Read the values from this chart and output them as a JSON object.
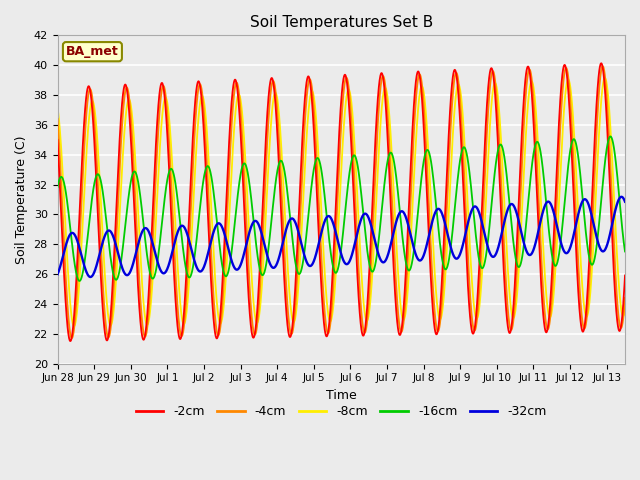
{
  "title": "Soil Temperatures Set B",
  "xlabel": "Time",
  "ylabel": "Soil Temperature (C)",
  "annotation": "BA_met",
  "ylim": [
    20,
    42
  ],
  "yticks": [
    20,
    22,
    24,
    26,
    28,
    30,
    32,
    34,
    36,
    38,
    40,
    42
  ],
  "colors": {
    "-2cm": "#ff0000",
    "-4cm": "#ff8800",
    "-8cm": "#ffee00",
    "-16cm": "#00cc00",
    "-32cm": "#0000dd"
  },
  "background_color": "#ebebeb",
  "grid_color": "#ffffff",
  "xtick_labels": [
    "Jun 28",
    "Jun 29",
    "Jun 30",
    "Jul 1",
    "Jul 2",
    "Jul 3",
    "Jul 4",
    "Jul 5",
    "Jul 6",
    "Jul 7",
    "Jul 8",
    "Jul 9",
    "Jul 10",
    "Jul 11",
    "Jul 12",
    "Jul 13"
  ]
}
